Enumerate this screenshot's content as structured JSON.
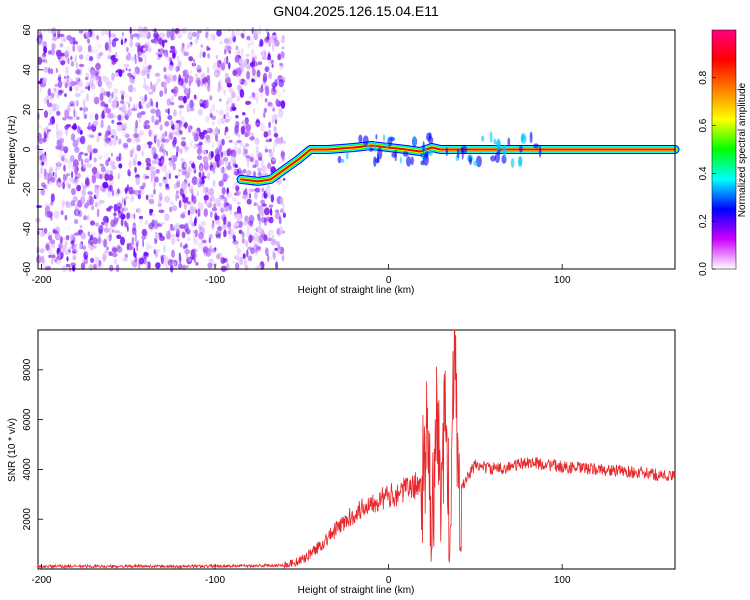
{
  "title": "GN04.2025.126.15.04.E11",
  "chart_data": [
    {
      "type": "heatmap",
      "xlabel": "Height of straight line (km)",
      "ylabel": "Frequency (Hz)",
      "xlim": [
        -202,
        165
      ],
      "ylim": [
        -60,
        60
      ],
      "xticks": [
        -200,
        -100,
        0,
        100
      ],
      "yticks": [
        -60,
        -40,
        -20,
        0,
        20,
        40,
        60
      ],
      "colorbar": {
        "label": "Normalized spectral amplitude",
        "range": [
          0,
          1
        ],
        "ticks": [
          0.0,
          0.2,
          0.4,
          0.6,
          0.8
        ],
        "colors": [
          "#ffffff",
          "#cc00ff",
          "#0000ff",
          "#00ffff",
          "#00ff00",
          "#ffff00",
          "#ff8000",
          "#ff0000",
          "#ff0080"
        ]
      },
      "noise_region_x": [
        -202,
        -60
      ],
      "ridge": {
        "x": [
          -85,
          -75,
          -68,
          -60,
          -52,
          -45,
          -35,
          -20,
          -10,
          0,
          10,
          18,
          25,
          30,
          40,
          80,
          120,
          165
        ],
        "frequency": [
          -15,
          -16,
          -15,
          -10,
          -5,
          0,
          0,
          1,
          2,
          1,
          0,
          -1,
          1,
          0,
          0,
          0,
          0,
          0
        ]
      },
      "grid": false
    },
    {
      "type": "line",
      "xlabel": "Height of straight line (km)",
      "ylabel": "SNR (10 * v/v)",
      "xlim": [
        -202,
        165
      ],
      "ylim": [
        0,
        9600
      ],
      "xticks": [
        -200,
        -100,
        0,
        100
      ],
      "yticks": [
        2000,
        4000,
        6000,
        8000
      ],
      "line_color": "#e8272a",
      "series": [
        {
          "x": [
            -202,
            -180,
            -160,
            -140,
            -120,
            -100,
            -80,
            -60,
            -50,
            -40,
            -30,
            -20,
            -10,
            0,
            10,
            18,
            20,
            22,
            25,
            28,
            30,
            33,
            35,
            38,
            40,
            50,
            60,
            70,
            80,
            90,
            100,
            120,
            140,
            165
          ],
          "values": [
            100,
            110,
            100,
            110,
            100,
            120,
            130,
            150,
            350,
            900,
            1600,
            2200,
            2700,
            2900,
            3200,
            3400,
            3700,
            5200,
            1400,
            6500,
            2000,
            8000,
            1000,
            9500,
            3000,
            4200,
            4000,
            4100,
            4300,
            4200,
            4100,
            4000,
            3900,
            3700
          ]
        }
      ],
      "grid": false
    }
  ]
}
